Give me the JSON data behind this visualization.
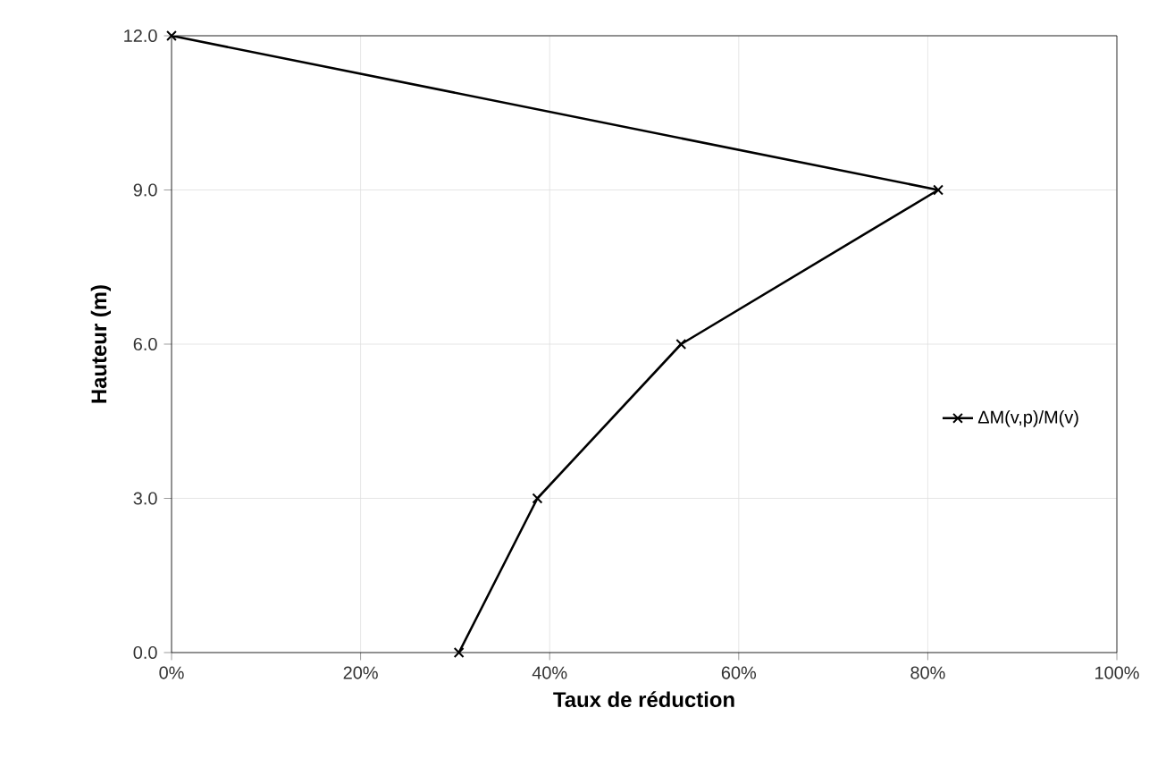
{
  "chart_data": {
    "type": "line",
    "xlabel": "Taux de réduction",
    "ylabel": "Hauteur (m)",
    "series": [
      {
        "name": "ΔM(v,p)/M(v)",
        "color": "#000000",
        "x": [
          30.4,
          38.7,
          53.9,
          81.1,
          0
        ],
        "values": [
          0,
          3,
          6,
          9,
          12
        ]
      }
    ],
    "xlim": [
      0,
      100
    ],
    "ylim": [
      0,
      12
    ],
    "xticks": [
      {
        "value": 0,
        "label": "0%"
      },
      {
        "value": 20,
        "label": "20%"
      },
      {
        "value": 40,
        "label": "40%"
      },
      {
        "value": 60,
        "label": "60%"
      },
      {
        "value": 80,
        "label": "80%"
      },
      {
        "value": 100,
        "label": "100%"
      }
    ],
    "yticks": [
      {
        "value": 0,
        "label": "0.0"
      },
      {
        "value": 3,
        "label": "3.0"
      },
      {
        "value": 6,
        "label": "6.0"
      },
      {
        "value": 9,
        "label": "9.0"
      },
      {
        "value": 12,
        "label": "12.0"
      }
    ],
    "grid": true,
    "legend": "right",
    "marker": "cross",
    "line_style": "solid"
  }
}
